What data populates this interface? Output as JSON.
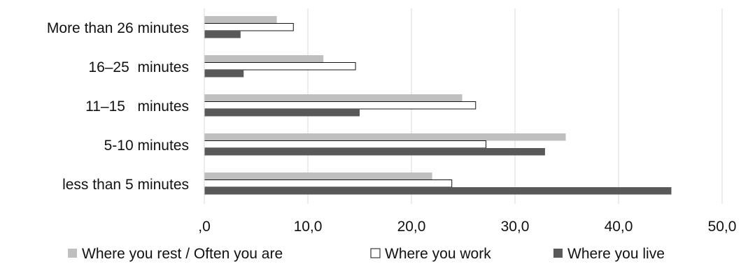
{
  "chart_data": {
    "type": "bar",
    "orientation": "horizontal",
    "categories": [
      "More than 26 minutes",
      "16–25  minutes",
      "11–15   minutes",
      "5-10 minutes",
      "less than 5 minutes"
    ],
    "series": [
      {
        "name": "Where you rest / Often you are",
        "color": "#bfbfbf",
        "values": [
          7.0,
          11.5,
          24.9,
          34.9,
          22.0
        ]
      },
      {
        "name": "Where you work",
        "color": "#ffffff",
        "values": [
          8.6,
          14.6,
          26.2,
          27.2,
          23.9
        ]
      },
      {
        "name": "Where you live",
        "color": "#595959",
        "values": [
          3.5,
          3.8,
          15.0,
          32.9,
          45.1
        ]
      }
    ],
    "xlim": [
      0,
      50
    ],
    "x_ticks": [
      ",0",
      "10,0",
      "20,0",
      "30,0",
      "40,0",
      "50,0"
    ],
    "grid": true,
    "legend_position": "bottom"
  }
}
